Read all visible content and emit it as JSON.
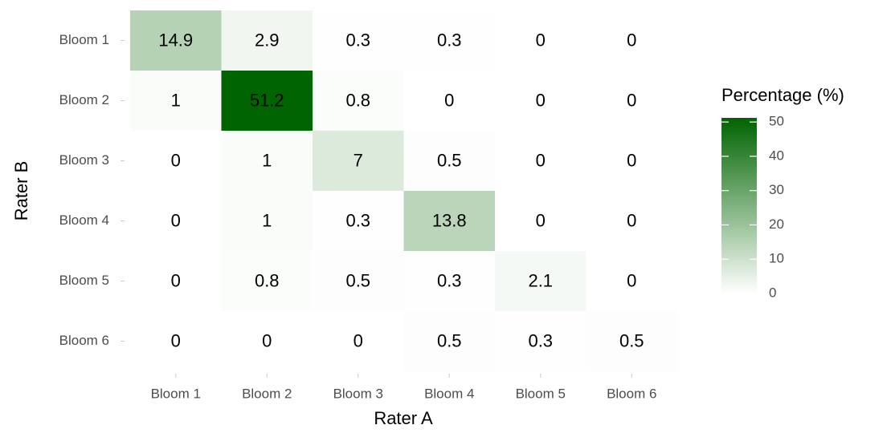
{
  "chart_data": {
    "type": "heatmap",
    "x_categories": [
      "Bloom 1",
      "Bloom 2",
      "Bloom 3",
      "Bloom 4",
      "Bloom 5",
      "Bloom 6"
    ],
    "y_categories": [
      "Bloom 1",
      "Bloom 2",
      "Bloom 3",
      "Bloom 4",
      "Bloom 5",
      "Bloom 6"
    ],
    "values": [
      [
        14.9,
        2.9,
        0.3,
        0.3,
        0,
        0
      ],
      [
        1,
        51.2,
        0.8,
        0,
        0,
        0
      ],
      [
        0,
        1,
        7,
        0.5,
        0,
        0
      ],
      [
        0,
        1,
        0.3,
        13.8,
        0,
        0
      ],
      [
        0,
        0.8,
        0.5,
        0.3,
        2.1,
        0
      ],
      [
        0,
        0,
        0,
        0.5,
        0.3,
        0.5
      ]
    ],
    "xlabel": "Rater A",
    "ylabel": "Rater B",
    "legend_title": "Percentage (%)",
    "clim": [
      0,
      51.2
    ],
    "cticks": [
      0,
      10,
      20,
      30,
      40,
      50
    ],
    "color_low": "#ffffff",
    "color_high": "#006400"
  }
}
